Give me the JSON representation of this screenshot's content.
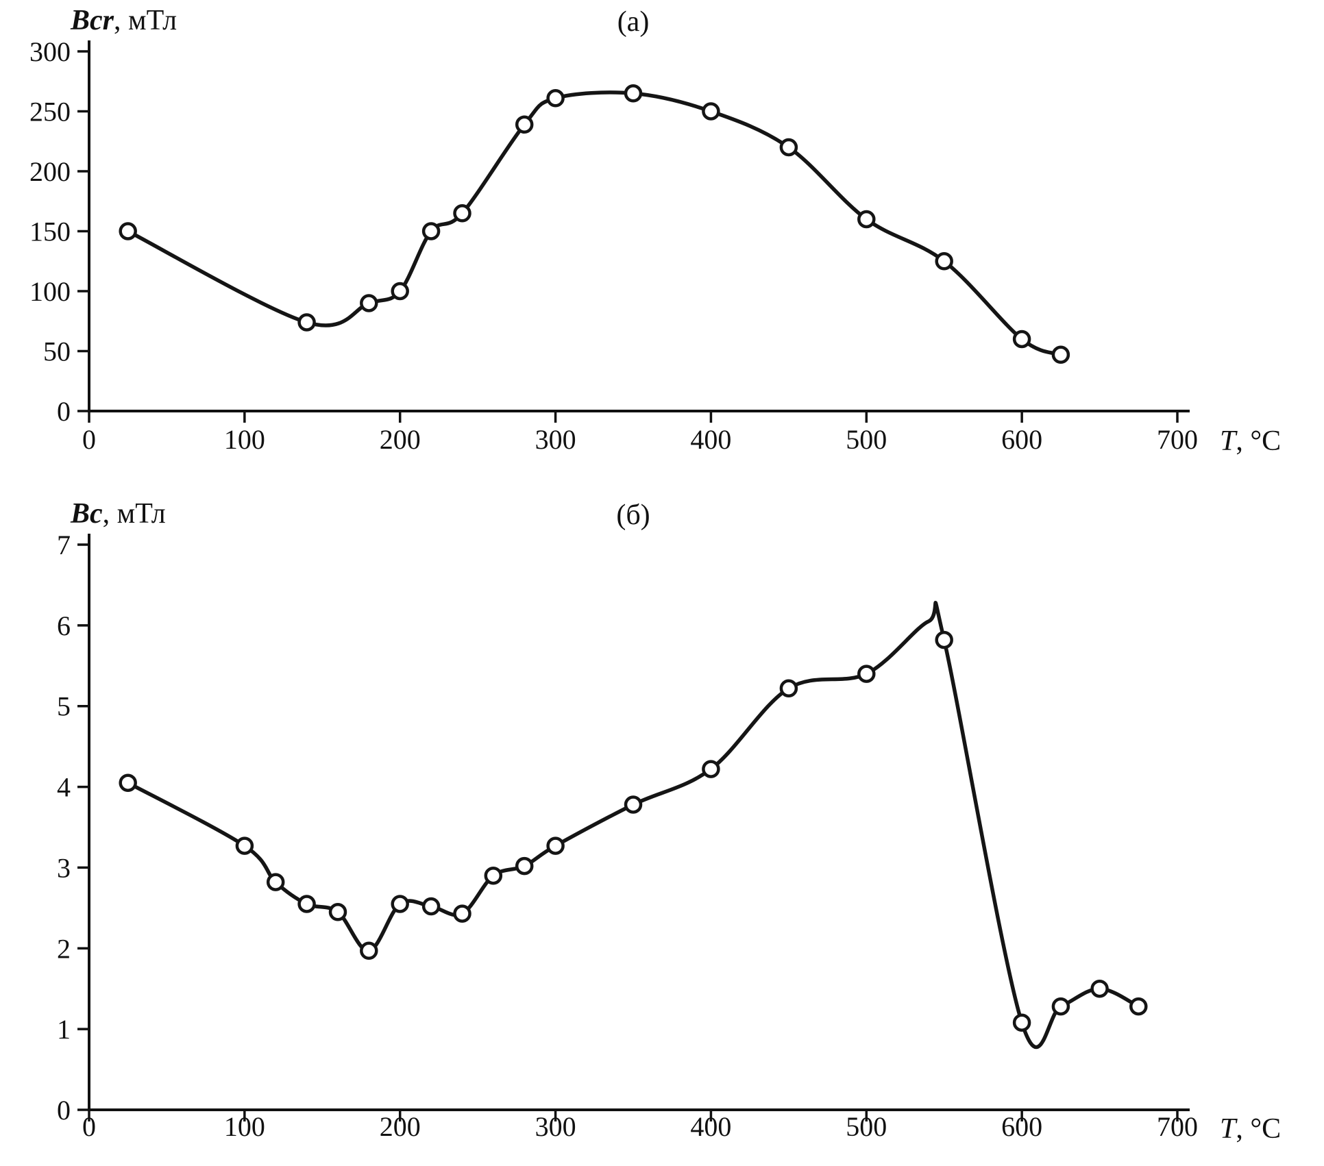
{
  "chart_data": [
    {
      "type": "line",
      "panel_label": "(а)",
      "ylabel_var": "Bcr",
      "ylabel_unit": ", мТл",
      "xlabel_var": "T",
      "xlabel_unit": ", °C",
      "xlim": [
        0,
        700
      ],
      "ylim": [
        0,
        300
      ],
      "x_ticks": [
        0,
        100,
        200,
        300,
        400,
        500,
        600,
        700
      ],
      "y_ticks": [
        0,
        50,
        100,
        150,
        200,
        250,
        300
      ],
      "grid": false,
      "legend": "none",
      "line_points": [
        [
          25,
          150
        ],
        [
          140,
          74
        ],
        [
          180,
          90
        ],
        [
          200,
          100
        ],
        [
          220,
          150
        ],
        [
          240,
          165
        ],
        [
          280,
          239
        ],
        [
          300,
          261
        ],
        [
          350,
          265
        ],
        [
          400,
          250
        ],
        [
          450,
          220
        ],
        [
          500,
          160
        ],
        [
          550,
          125
        ],
        [
          600,
          60
        ],
        [
          625,
          47
        ]
      ],
      "marker_points": [
        [
          25,
          150
        ],
        [
          140,
          74
        ],
        [
          180,
          90
        ],
        [
          200,
          100
        ],
        [
          220,
          150
        ],
        [
          240,
          165
        ],
        [
          280,
          239
        ],
        [
          300,
          261
        ],
        [
          350,
          265
        ],
        [
          400,
          250
        ],
        [
          450,
          220
        ],
        [
          500,
          160
        ],
        [
          550,
          125
        ],
        [
          600,
          60
        ],
        [
          625,
          47
        ]
      ]
    },
    {
      "type": "line",
      "panel_label": "(б)",
      "ylabel_var": "Bc",
      "ylabel_unit": ", мТл",
      "xlabel_var": "T",
      "xlabel_unit": ", °C",
      "xlim": [
        0,
        700
      ],
      "ylim": [
        0,
        7
      ],
      "x_ticks": [
        0,
        100,
        200,
        300,
        400,
        500,
        600,
        700
      ],
      "y_ticks": [
        0,
        1,
        2,
        3,
        4,
        5,
        6,
        7
      ],
      "grid": false,
      "legend": "none",
      "line_points": [
        [
          25,
          4.05
        ],
        [
          100,
          3.27
        ],
        [
          120,
          2.82
        ],
        [
          140,
          2.55
        ],
        [
          160,
          2.45
        ],
        [
          180,
          1.97
        ],
        [
          200,
          2.55
        ],
        [
          220,
          2.52
        ],
        [
          240,
          2.43
        ],
        [
          260,
          2.9
        ],
        [
          280,
          3.02
        ],
        [
          300,
          3.27
        ],
        [
          350,
          3.78
        ],
        [
          400,
          4.22
        ],
        [
          450,
          5.22
        ],
        [
          500,
          5.4
        ],
        [
          540,
          6.05
        ],
        [
          550,
          5.82
        ],
        [
          600,
          1.08
        ],
        [
          625,
          1.28
        ],
        [
          650,
          1.5
        ],
        [
          675,
          1.28
        ]
      ],
      "marker_points": [
        [
          25,
          4.05
        ],
        [
          100,
          3.27
        ],
        [
          120,
          2.82
        ],
        [
          140,
          2.55
        ],
        [
          160,
          2.45
        ],
        [
          180,
          1.97
        ],
        [
          200,
          2.55
        ],
        [
          220,
          2.52
        ],
        [
          240,
          2.43
        ],
        [
          260,
          2.9
        ],
        [
          280,
          3.02
        ],
        [
          300,
          3.27
        ],
        [
          350,
          3.78
        ],
        [
          400,
          4.22
        ],
        [
          450,
          5.22
        ],
        [
          500,
          5.4
        ],
        [
          550,
          5.82
        ],
        [
          600,
          1.08
        ],
        [
          625,
          1.28
        ],
        [
          650,
          1.5
        ],
        [
          675,
          1.28
        ]
      ]
    }
  ],
  "style": {
    "line_color": "#151515",
    "marker_fill": "#ffffff",
    "axis_color": "#111111"
  }
}
